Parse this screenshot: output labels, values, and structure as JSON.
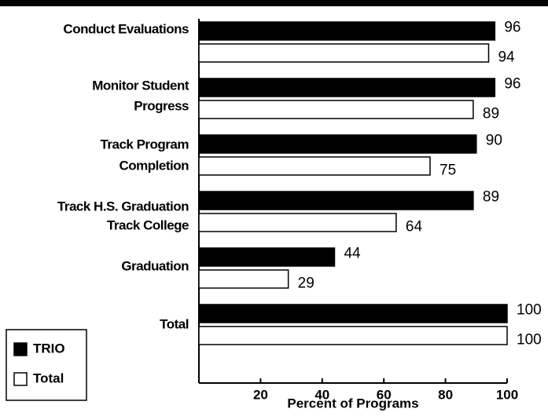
{
  "chart_data": {
    "type": "bar",
    "orientation": "horizontal",
    "categories": [
      [
        "Conduct Evaluations"
      ],
      [
        "Monitor Student",
        "Progress"
      ],
      [
        "Track Program",
        "Completion"
      ],
      [
        "Track H.S. Graduation"
      ],
      [
        "Track College",
        "Graduation"
      ],
      [
        "Total"
      ]
    ],
    "series": [
      {
        "name": "TRIO",
        "color": "#000000",
        "values": [
          96,
          96,
          90,
          89,
          44,
          100
        ]
      },
      {
        "name": "Total",
        "color": "#ffffff",
        "values": [
          94,
          89,
          75,
          64,
          29,
          100
        ]
      }
    ],
    "xlim": [
      0,
      100
    ],
    "xticks": [
      20,
      40,
      60,
      80,
      100
    ],
    "xlabel": "Percent of Programs",
    "legend": "lower left"
  }
}
